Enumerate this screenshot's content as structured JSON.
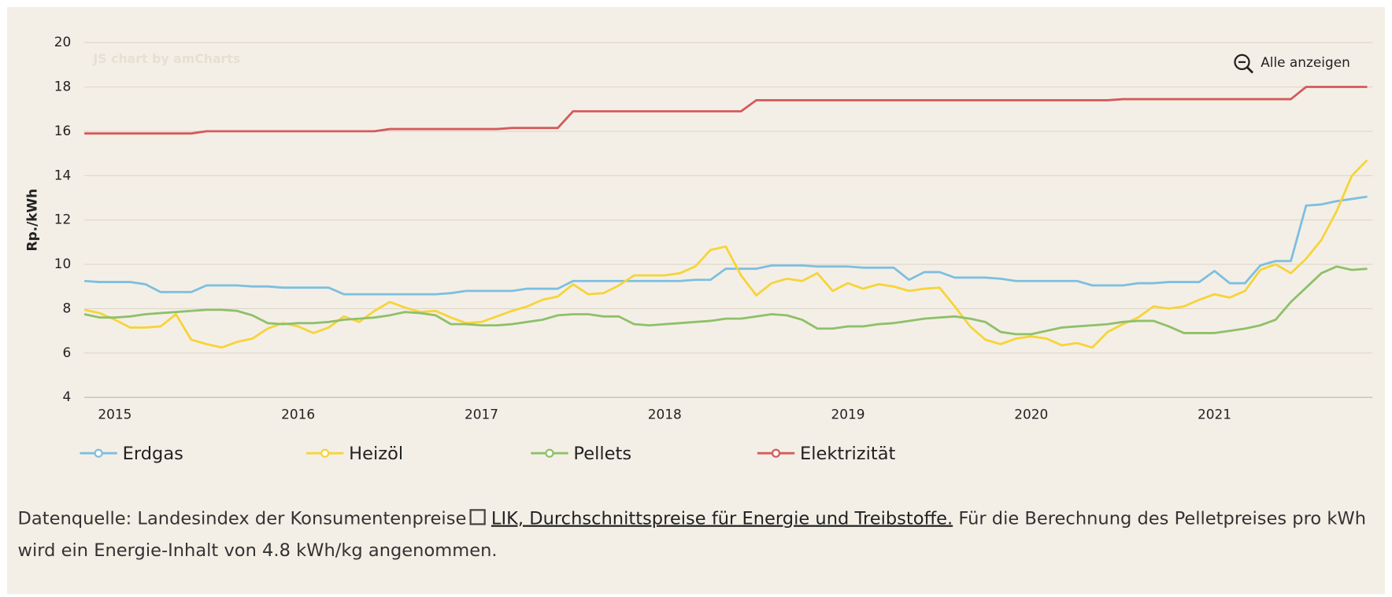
{
  "chart_data": {
    "type": "line",
    "y_label": "Rp./kWh",
    "watermark": "JS chart by amCharts",
    "button": "Alle anzeigen",
    "categories": [
      null,
      null,
      "2015",
      null,
      null,
      null,
      null,
      null,
      null,
      null,
      null,
      null,
      null,
      null,
      "2016",
      null,
      null,
      null,
      null,
      null,
      null,
      null,
      null,
      null,
      null,
      null,
      "2017",
      null,
      null,
      null,
      null,
      null,
      null,
      null,
      null,
      null,
      null,
      null,
      "2018",
      null,
      null,
      null,
      null,
      null,
      null,
      null,
      null,
      null,
      null,
      null,
      "2019",
      null,
      null,
      null,
      null,
      null,
      null,
      null,
      null,
      null,
      null,
      null,
      "2020",
      null,
      null,
      null,
      null,
      null,
      null,
      null,
      null,
      null,
      null,
      null,
      "2021",
      null,
      null,
      null,
      null,
      null,
      null,
      null,
      null,
      null,
      null
    ],
    "ylim": [
      4,
      20
    ],
    "yticks": [
      4,
      6,
      8,
      10,
      12,
      14,
      16,
      18,
      20
    ],
    "grid": true,
    "series": [
      {
        "name": "Erdgas",
        "color": "#7dbfe0",
        "values": [
          9.25,
          9.2,
          9.2,
          9.2,
          9.1,
          8.75,
          8.75,
          8.75,
          9.05,
          9.05,
          9.05,
          9.0,
          9.0,
          8.95,
          8.95,
          8.95,
          8.95,
          8.65,
          8.65,
          8.65,
          8.65,
          8.65,
          8.65,
          8.65,
          8.7,
          8.8,
          8.8,
          8.8,
          8.8,
          8.9,
          8.9,
          8.9,
          9.25,
          9.25,
          9.25,
          9.25,
          9.25,
          9.25,
          9.25,
          9.25,
          9.3,
          9.3,
          9.8,
          9.8,
          9.8,
          9.95,
          9.95,
          9.95,
          9.9,
          9.9,
          9.9,
          9.85,
          9.85,
          9.85,
          9.3,
          9.65,
          9.65,
          9.4,
          9.4,
          9.4,
          9.35,
          9.25,
          9.25,
          9.25,
          9.25,
          9.25,
          9.05,
          9.05,
          9.05,
          9.15,
          9.15,
          9.2,
          9.2,
          9.2,
          9.7,
          9.15,
          9.15,
          9.95,
          10.15,
          10.15,
          12.65,
          12.7,
          12.85,
          12.95,
          13.05
        ]
      },
      {
        "name": "Heizöl",
        "color": "#f6d43a",
        "values": [
          7.95,
          7.8,
          7.5,
          7.15,
          7.15,
          7.2,
          7.75,
          6.6,
          6.4,
          6.25,
          6.5,
          6.65,
          7.1,
          7.35,
          7.2,
          6.9,
          7.15,
          7.65,
          7.4,
          7.9,
          8.3,
          8.05,
          7.85,
          7.9,
          7.6,
          7.35,
          7.4,
          7.65,
          7.9,
          8.1,
          8.4,
          8.55,
          9.1,
          8.65,
          8.7,
          9.05,
          9.5,
          9.5,
          9.5,
          9.6,
          9.9,
          10.65,
          10.8,
          9.5,
          8.6,
          9.15,
          9.35,
          9.25,
          9.6,
          8.8,
          9.15,
          8.9,
          9.1,
          9.0,
          8.8,
          8.9,
          8.95,
          8.1,
          7.2,
          6.6,
          6.4,
          6.65,
          6.75,
          6.65,
          6.35,
          6.45,
          6.25,
          6.95,
          7.3,
          7.6,
          8.1,
          8.0,
          8.1,
          8.4,
          8.65,
          8.5,
          8.8,
          9.75,
          10.0,
          9.6,
          10.25,
          11.1,
          12.4,
          14.0,
          14.7
        ]
      },
      {
        "name": "Pellets",
        "color": "#8fc06a",
        "values": [
          7.75,
          7.6,
          7.6,
          7.65,
          7.75,
          7.8,
          7.85,
          7.9,
          7.95,
          7.95,
          7.9,
          7.7,
          7.35,
          7.3,
          7.35,
          7.35,
          7.4,
          7.5,
          7.55,
          7.6,
          7.7,
          7.85,
          7.8,
          7.7,
          7.3,
          7.3,
          7.25,
          7.25,
          7.3,
          7.4,
          7.5,
          7.7,
          7.75,
          7.75,
          7.65,
          7.65,
          7.3,
          7.25,
          7.3,
          7.35,
          7.4,
          7.45,
          7.55,
          7.55,
          7.65,
          7.75,
          7.7,
          7.5,
          7.1,
          7.1,
          7.2,
          7.2,
          7.3,
          7.35,
          7.45,
          7.55,
          7.6,
          7.65,
          7.55,
          7.4,
          6.95,
          6.85,
          6.85,
          7.0,
          7.15,
          7.2,
          7.25,
          7.3,
          7.4,
          7.45,
          7.45,
          7.2,
          6.9,
          6.9,
          6.9,
          7.0,
          7.1,
          7.25,
          7.5,
          8.3,
          8.95,
          9.6,
          9.9,
          9.75,
          9.8
        ]
      },
      {
        "name": "Elektrizität",
        "color": "#d55a5a",
        "values": [
          15.9,
          15.9,
          15.9,
          15.9,
          15.9,
          15.9,
          15.9,
          15.9,
          16.0,
          16.0,
          16.0,
          16.0,
          16.0,
          16.0,
          16.0,
          16.0,
          16.0,
          16.0,
          16.0,
          16.0,
          16.1,
          16.1,
          16.1,
          16.1,
          16.1,
          16.1,
          16.1,
          16.1,
          16.15,
          16.15,
          16.15,
          16.15,
          16.9,
          16.9,
          16.9,
          16.9,
          16.9,
          16.9,
          16.9,
          16.9,
          16.9,
          16.9,
          16.9,
          16.9,
          17.4,
          17.4,
          17.4,
          17.4,
          17.4,
          17.4,
          17.4,
          17.4,
          17.4,
          17.4,
          17.4,
          17.4,
          17.4,
          17.4,
          17.4,
          17.4,
          17.4,
          17.4,
          17.4,
          17.4,
          17.4,
          17.4,
          17.4,
          17.4,
          17.45,
          17.45,
          17.45,
          17.45,
          17.45,
          17.45,
          17.45,
          17.45,
          17.45,
          17.45,
          17.45,
          17.45,
          18.0,
          18.0,
          18.0,
          18.0,
          18.0
        ]
      }
    ]
  },
  "footer": {
    "prefix": "Datenquelle: Landesindex der Konsumentenpreise",
    "link": "LIK, Durchschnittspreise für Energie und Treibstoffe.",
    "suffix": "Für die Berechnung des Pelletpreises pro kWh wird ein Energie-Inhalt von 4.8 kWh/kg angenommen."
  }
}
